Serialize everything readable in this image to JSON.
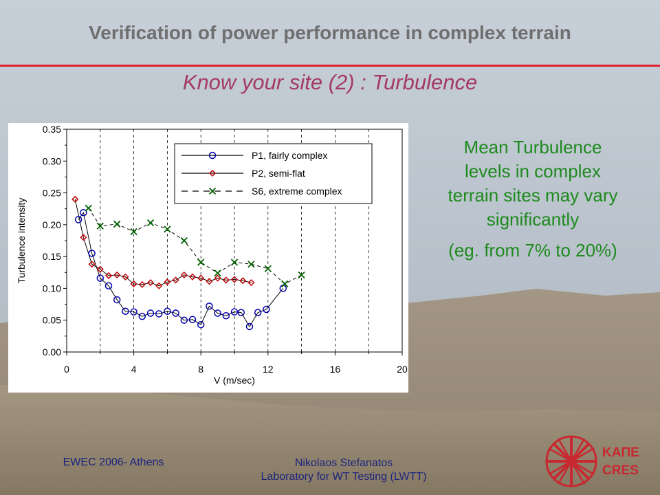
{
  "slide": {
    "title": "Verification of power performance in complex terrain",
    "subtitle": "Know your site (2) : Turbulence",
    "note_lines": [
      "Mean Turbulence",
      "levels in complex",
      "terrain sites may vary",
      "significantly"
    ],
    "note_example": "(eg. from 7% to 20%)",
    "footer_left": "EWEC 2006- Athens",
    "footer_center_1": "Nikolaos Stefanatos",
    "footer_center_2": "Laboratory for WT Testing (LWTT)",
    "logo_line_1": "ΚΑΠΕ",
    "logo_line_2": "CRES",
    "colors": {
      "title": "#6f6f6f",
      "subtitle": "#a43a62",
      "rule": "#e0202c",
      "note": "#1e8a1e",
      "footer": "#1a237e",
      "logo": "#c8282f"
    }
  },
  "chart_data": {
    "type": "line",
    "xlabel": "V (m/sec)",
    "ylabel": "Turbulence intensity",
    "xlim": [
      0,
      20
    ],
    "ylim": [
      0,
      0.35
    ],
    "x_ticks": [
      "0",
      "4",
      "8",
      "12",
      "16",
      "20"
    ],
    "y_ticks": [
      "0.00",
      "0.05",
      "0.10",
      "0.15",
      "0.20",
      "0.25",
      "0.30",
      "0.35"
    ],
    "grid": "vertical dashed",
    "legend_position": "top-right",
    "series": [
      {
        "name": "P1, fairly complex",
        "marker": "circle",
        "line": "solid",
        "color": "#0000b0",
        "x": [
          0.7,
          1.0,
          1.5,
          2.0,
          2.5,
          3.0,
          3.5,
          4.0,
          4.5,
          5.0,
          5.5,
          6.0,
          6.5,
          7.0,
          7.5,
          8.0,
          8.5,
          9.0,
          9.5,
          10.0,
          10.4,
          10.9,
          11.4,
          11.9,
          12.9
        ],
        "y": [
          0.208,
          0.219,
          0.155,
          0.116,
          0.104,
          0.082,
          0.064,
          0.063,
          0.056,
          0.061,
          0.06,
          0.064,
          0.061,
          0.05,
          0.051,
          0.043,
          0.072,
          0.061,
          0.057,
          0.063,
          0.062,
          0.04,
          0.062,
          0.067,
          0.1
        ]
      },
      {
        "name": "P2, semi-flat",
        "marker": "diamond",
        "line": "solid",
        "color": "#c00000",
        "x": [
          0.5,
          1.0,
          1.5,
          2.0,
          2.5,
          3.0,
          3.5,
          4.0,
          4.5,
          5.0,
          5.5,
          6.0,
          6.5,
          7.0,
          7.5,
          8.0,
          8.5,
          9.0,
          9.5,
          10.0,
          10.5,
          11.0
        ],
        "y": [
          0.24,
          0.18,
          0.138,
          0.13,
          0.12,
          0.121,
          0.118,
          0.107,
          0.106,
          0.109,
          0.104,
          0.11,
          0.113,
          0.121,
          0.118,
          0.116,
          0.111,
          0.116,
          0.113,
          0.114,
          0.112,
          0.109
        ]
      },
      {
        "name": "S6, extreme complex",
        "marker": "x",
        "line": "dashed",
        "color": "#006000",
        "x": [
          1.3,
          2.0,
          3.0,
          4.0,
          5.0,
          6.0,
          7.0,
          8.0,
          9.0,
          10.0,
          11.0,
          12.0,
          13.0,
          14.0
        ],
        "y": [
          0.226,
          0.198,
          0.201,
          0.189,
          0.203,
          0.193,
          0.175,
          0.141,
          0.124,
          0.141,
          0.138,
          0.131,
          0.107,
          0.121
        ]
      }
    ]
  }
}
